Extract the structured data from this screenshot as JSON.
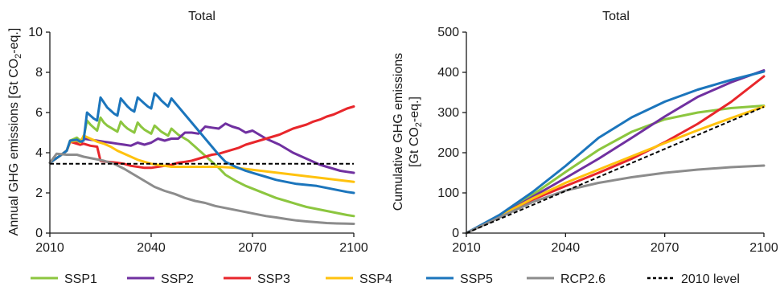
{
  "colors": {
    "SSP1": "#8cc63f",
    "SSP2": "#7030a0",
    "SSP3": "#e8262b",
    "SSP4": "#ffc20e",
    "SSP5": "#1b75bc",
    "RCP2.6": "#8c8c8c",
    "baseline": "#000000"
  },
  "legend": [
    {
      "label": "SSP1",
      "color": "#8cc63f",
      "style": "solid"
    },
    {
      "label": "SSP2",
      "color": "#7030a0",
      "style": "solid"
    },
    {
      "label": "SSP3",
      "color": "#e8262b",
      "style": "solid"
    },
    {
      "label": "SSP4",
      "color": "#ffc20e",
      "style": "solid"
    },
    {
      "label": "SSP5",
      "color": "#1b75bc",
      "style": "solid"
    },
    {
      "label": "RCP2.6",
      "color": "#8c8c8c",
      "style": "solid"
    },
    {
      "label": "2010 level",
      "color": "#000000",
      "style": "dashed"
    }
  ],
  "chart_data": [
    {
      "type": "line",
      "title": "Total",
      "ylabel": "Annual GHG emissions [Gt CO₂-eq.]",
      "xlabel": "",
      "xlim": [
        2010,
        2100
      ],
      "ylim": [
        0,
        10
      ],
      "xticks": [
        2010,
        2040,
        2070,
        2100
      ],
      "yticks": [
        0,
        2,
        4,
        6,
        8,
        10
      ],
      "grid": false,
      "series": [
        {
          "name": "SSP1",
          "x": [
            2010,
            2013,
            2015,
            2016,
            2018,
            2019,
            2020,
            2021,
            2022,
            2023,
            2024,
            2025,
            2026,
            2027,
            2028,
            2029,
            2030,
            2031,
            2032,
            2033,
            2034,
            2035,
            2036,
            2037,
            2038,
            2039,
            2040,
            2041,
            2042,
            2043,
            2044,
            2045,
            2046,
            2047,
            2048,
            2049,
            2050,
            2051,
            2052,
            2053,
            2054,
            2055,
            2056,
            2057,
            2058,
            2059,
            2060,
            2062,
            2065,
            2068,
            2071,
            2074,
            2077,
            2080,
            2083,
            2086,
            2089,
            2092,
            2095,
            2098,
            2100
          ],
          "y": [
            3.5,
            3.85,
            4.1,
            4.6,
            4.75,
            4.6,
            4.75,
            5.6,
            5.4,
            5.25,
            5.1,
            5.75,
            5.5,
            5.35,
            5.25,
            5.15,
            5.05,
            5.55,
            5.35,
            5.2,
            5.1,
            5.0,
            5.5,
            5.3,
            5.15,
            5.05,
            4.95,
            5.35,
            5.2,
            5.05,
            4.95,
            4.85,
            5.2,
            5.05,
            4.9,
            4.8,
            4.7,
            4.6,
            4.45,
            4.3,
            4.15,
            4.0,
            3.85,
            3.7,
            3.55,
            3.4,
            3.25,
            2.9,
            2.6,
            2.35,
            2.15,
            1.95,
            1.75,
            1.6,
            1.45,
            1.3,
            1.2,
            1.1,
            1.0,
            0.9,
            0.85
          ]
        },
        {
          "name": "SSP2",
          "x": [
            2010,
            2013,
            2015,
            2016,
            2018,
            2019,
            2020,
            2022,
            2024,
            2026,
            2028,
            2030,
            2032,
            2034,
            2036,
            2038,
            2040,
            2042,
            2044,
            2046,
            2048,
            2050,
            2052,
            2054,
            2056,
            2058,
            2060,
            2062,
            2064,
            2066,
            2068,
            2070,
            2072,
            2074,
            2076,
            2078,
            2080,
            2082,
            2084,
            2086,
            2088,
            2090,
            2092,
            2094,
            2096,
            2098,
            2100
          ],
          "y": [
            3.5,
            3.85,
            4.1,
            4.55,
            4.5,
            4.4,
            4.7,
            4.65,
            4.6,
            4.55,
            4.5,
            4.45,
            4.4,
            4.35,
            4.5,
            4.4,
            4.5,
            4.7,
            4.6,
            4.7,
            4.7,
            5.0,
            5.0,
            4.95,
            5.3,
            5.25,
            5.2,
            5.45,
            5.3,
            5.2,
            5.0,
            5.1,
            4.9,
            4.7,
            4.55,
            4.4,
            4.2,
            4.0,
            3.85,
            3.7,
            3.55,
            3.4,
            3.3,
            3.2,
            3.1,
            3.05,
            3.0
          ]
        },
        {
          "name": "SSP3",
          "x": [
            2010,
            2013,
            2015,
            2016,
            2018,
            2019,
            2020,
            2022,
            2024,
            2025,
            2027,
            2030,
            2032,
            2034,
            2036,
            2038,
            2040,
            2042,
            2044,
            2046,
            2048,
            2050,
            2052,
            2054,
            2056,
            2058,
            2060,
            2062,
            2064,
            2066,
            2068,
            2070,
            2072,
            2074,
            2076,
            2078,
            2080,
            2082,
            2084,
            2086,
            2088,
            2090,
            2092,
            2094,
            2096,
            2098,
            2100
          ],
          "y": [
            3.5,
            3.85,
            4.1,
            4.55,
            4.45,
            4.4,
            4.45,
            4.35,
            4.3,
            3.6,
            3.55,
            3.5,
            3.45,
            3.35,
            3.3,
            3.25,
            3.25,
            3.3,
            3.35,
            3.4,
            3.5,
            3.55,
            3.6,
            3.7,
            3.8,
            3.9,
            3.95,
            4.05,
            4.15,
            4.25,
            4.4,
            4.5,
            4.6,
            4.7,
            4.8,
            4.9,
            5.05,
            5.2,
            5.3,
            5.4,
            5.55,
            5.65,
            5.8,
            5.9,
            6.05,
            6.2,
            6.3
          ]
        },
        {
          "name": "SSP4",
          "x": [
            2010,
            2013,
            2015,
            2016,
            2018,
            2019,
            2020,
            2022,
            2024,
            2026,
            2028,
            2030,
            2032,
            2034,
            2036,
            2038,
            2040,
            2042,
            2044,
            2046,
            2048,
            2050,
            2055,
            2060,
            2065,
            2070,
            2075,
            2080,
            2085,
            2090,
            2095,
            2100
          ],
          "y": [
            3.5,
            3.85,
            4.1,
            4.55,
            4.6,
            4.5,
            4.85,
            4.7,
            4.55,
            4.45,
            4.3,
            4.1,
            3.95,
            3.8,
            3.65,
            3.55,
            3.45,
            3.4,
            3.35,
            3.3,
            3.3,
            3.3,
            3.3,
            3.3,
            3.25,
            3.15,
            3.05,
            2.95,
            2.85,
            2.75,
            2.65,
            2.55
          ]
        },
        {
          "name": "SSP5",
          "x": [
            2010,
            2013,
            2015,
            2016,
            2018,
            2019,
            2020,
            2021,
            2022,
            2023,
            2024,
            2025,
            2026,
            2027,
            2028,
            2029,
            2030,
            2031,
            2032,
            2033,
            2034,
            2035,
            2036,
            2037,
            2038,
            2039,
            2040,
            2041,
            2042,
            2043,
            2044,
            2045,
            2046,
            2047,
            2048,
            2049,
            2050,
            2051,
            2052,
            2053,
            2054,
            2055,
            2056,
            2057,
            2058,
            2059,
            2060,
            2062,
            2065,
            2068,
            2071,
            2074,
            2077,
            2080,
            2083,
            2086,
            2089,
            2092,
            2095,
            2098,
            2100
          ],
          "y": [
            3.5,
            3.85,
            4.1,
            4.6,
            4.65,
            4.55,
            4.6,
            6.0,
            5.85,
            5.7,
            5.6,
            6.75,
            6.5,
            6.25,
            6.1,
            5.95,
            5.85,
            6.7,
            6.5,
            6.3,
            6.15,
            6.05,
            6.75,
            6.6,
            6.45,
            6.3,
            6.2,
            6.95,
            6.8,
            6.6,
            6.45,
            6.3,
            6.7,
            6.5,
            6.3,
            6.1,
            5.9,
            5.7,
            5.5,
            5.3,
            5.1,
            4.9,
            4.7,
            4.5,
            4.3,
            4.1,
            3.9,
            3.55,
            3.3,
            3.1,
            2.95,
            2.8,
            2.65,
            2.55,
            2.45,
            2.4,
            2.35,
            2.25,
            2.15,
            2.05,
            2.0
          ]
        },
        {
          "name": "RCP2.6",
          "x": [
            2010,
            2012,
            2015,
            2018,
            2020,
            2023,
            2026,
            2029,
            2032,
            2035,
            2038,
            2041,
            2044,
            2047,
            2050,
            2053,
            2056,
            2059,
            2062,
            2065,
            2068,
            2071,
            2074,
            2077,
            2080,
            2083,
            2086,
            2089,
            2092,
            2095,
            2098,
            2100
          ],
          "y": [
            3.5,
            3.95,
            3.9,
            3.9,
            3.8,
            3.7,
            3.6,
            3.45,
            3.2,
            2.9,
            2.6,
            2.3,
            2.1,
            1.95,
            1.75,
            1.6,
            1.5,
            1.35,
            1.25,
            1.15,
            1.05,
            0.95,
            0.85,
            0.78,
            0.7,
            0.63,
            0.58,
            0.54,
            0.5,
            0.48,
            0.47,
            0.46
          ]
        }
      ],
      "reference_line": {
        "name": "2010 level",
        "y": 3.45
      }
    },
    {
      "type": "line",
      "title": "Total",
      "ylabel": "Cumulative GHG emissions [Gt CO₂-eq.]",
      "xlabel": "",
      "xlim": [
        2010,
        2100
      ],
      "ylim": [
        0,
        500
      ],
      "xticks": [
        2010,
        2040,
        2070,
        2100
      ],
      "yticks": [
        0,
        100,
        200,
        300,
        400,
        500
      ],
      "grid": false,
      "series": [
        {
          "name": "SSP1",
          "x": [
            2010,
            2020,
            2030,
            2040,
            2050,
            2060,
            2070,
            2080,
            2090,
            2100
          ],
          "y": [
            0,
            42,
            95,
            152,
            207,
            252,
            283,
            300,
            311,
            317
          ]
        },
        {
          "name": "SSP2",
          "x": [
            2010,
            2020,
            2030,
            2040,
            2050,
            2060,
            2070,
            2080,
            2090,
            2100
          ],
          "y": [
            0,
            42,
            90,
            137,
            185,
            237,
            290,
            339,
            375,
            405
          ]
        },
        {
          "name": "SSP3",
          "x": [
            2010,
            2020,
            2030,
            2040,
            2050,
            2060,
            2070,
            2080,
            2090,
            2100
          ],
          "y": [
            0,
            42,
            83,
            117,
            150,
            185,
            226,
            272,
            326,
            390
          ]
        },
        {
          "name": "SSP4",
          "x": [
            2010,
            2020,
            2030,
            2040,
            2050,
            2060,
            2070,
            2080,
            2090,
            2100
          ],
          "y": [
            0,
            42,
            86,
            125,
            158,
            191,
            224,
            256,
            286,
            315
          ]
        },
        {
          "name": "SSP5",
          "x": [
            2010,
            2020,
            2030,
            2040,
            2050,
            2060,
            2070,
            2080,
            2090,
            2100
          ],
          "y": [
            0,
            45,
            102,
            167,
            237,
            288,
            327,
            357,
            381,
            402
          ]
        },
        {
          "name": "RCP2.6",
          "x": [
            2010,
            2020,
            2030,
            2040,
            2050,
            2060,
            2070,
            2080,
            2090,
            2100
          ],
          "y": [
            0,
            39,
            77,
            106,
            125,
            139,
            150,
            158,
            164,
            168
          ]
        }
      ],
      "reference_line": {
        "name": "2010 level",
        "x": [
          2010,
          2100
        ],
        "y": [
          0,
          314
        ]
      }
    }
  ]
}
